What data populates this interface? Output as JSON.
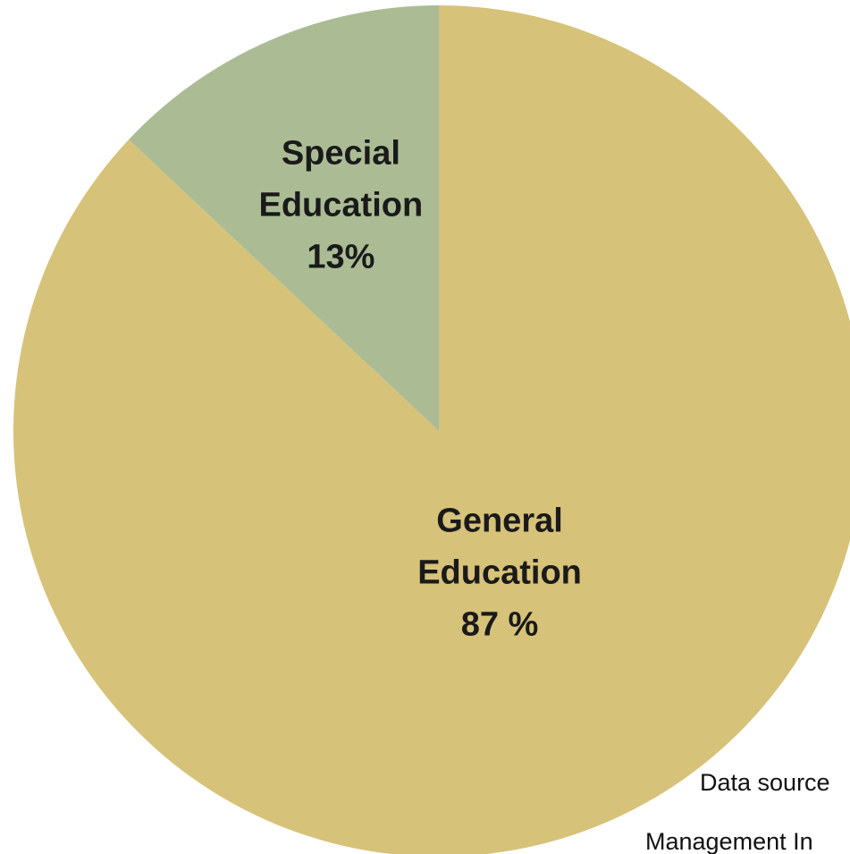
{
  "chart_data": {
    "type": "pie",
    "start_angle_deg": 0,
    "direction": "clockwise",
    "slices": [
      {
        "name": "General Education",
        "value": 87,
        "color": "#d6c279",
        "label_lines": [
          "General",
          "Education",
          "87 %"
        ]
      },
      {
        "name": "Special Education",
        "value": 13,
        "color": "#abbc95",
        "label_lines": [
          "Special",
          "Education",
          "13%"
        ]
      }
    ],
    "source_note": [
      "Data source",
      "Management In"
    ]
  }
}
